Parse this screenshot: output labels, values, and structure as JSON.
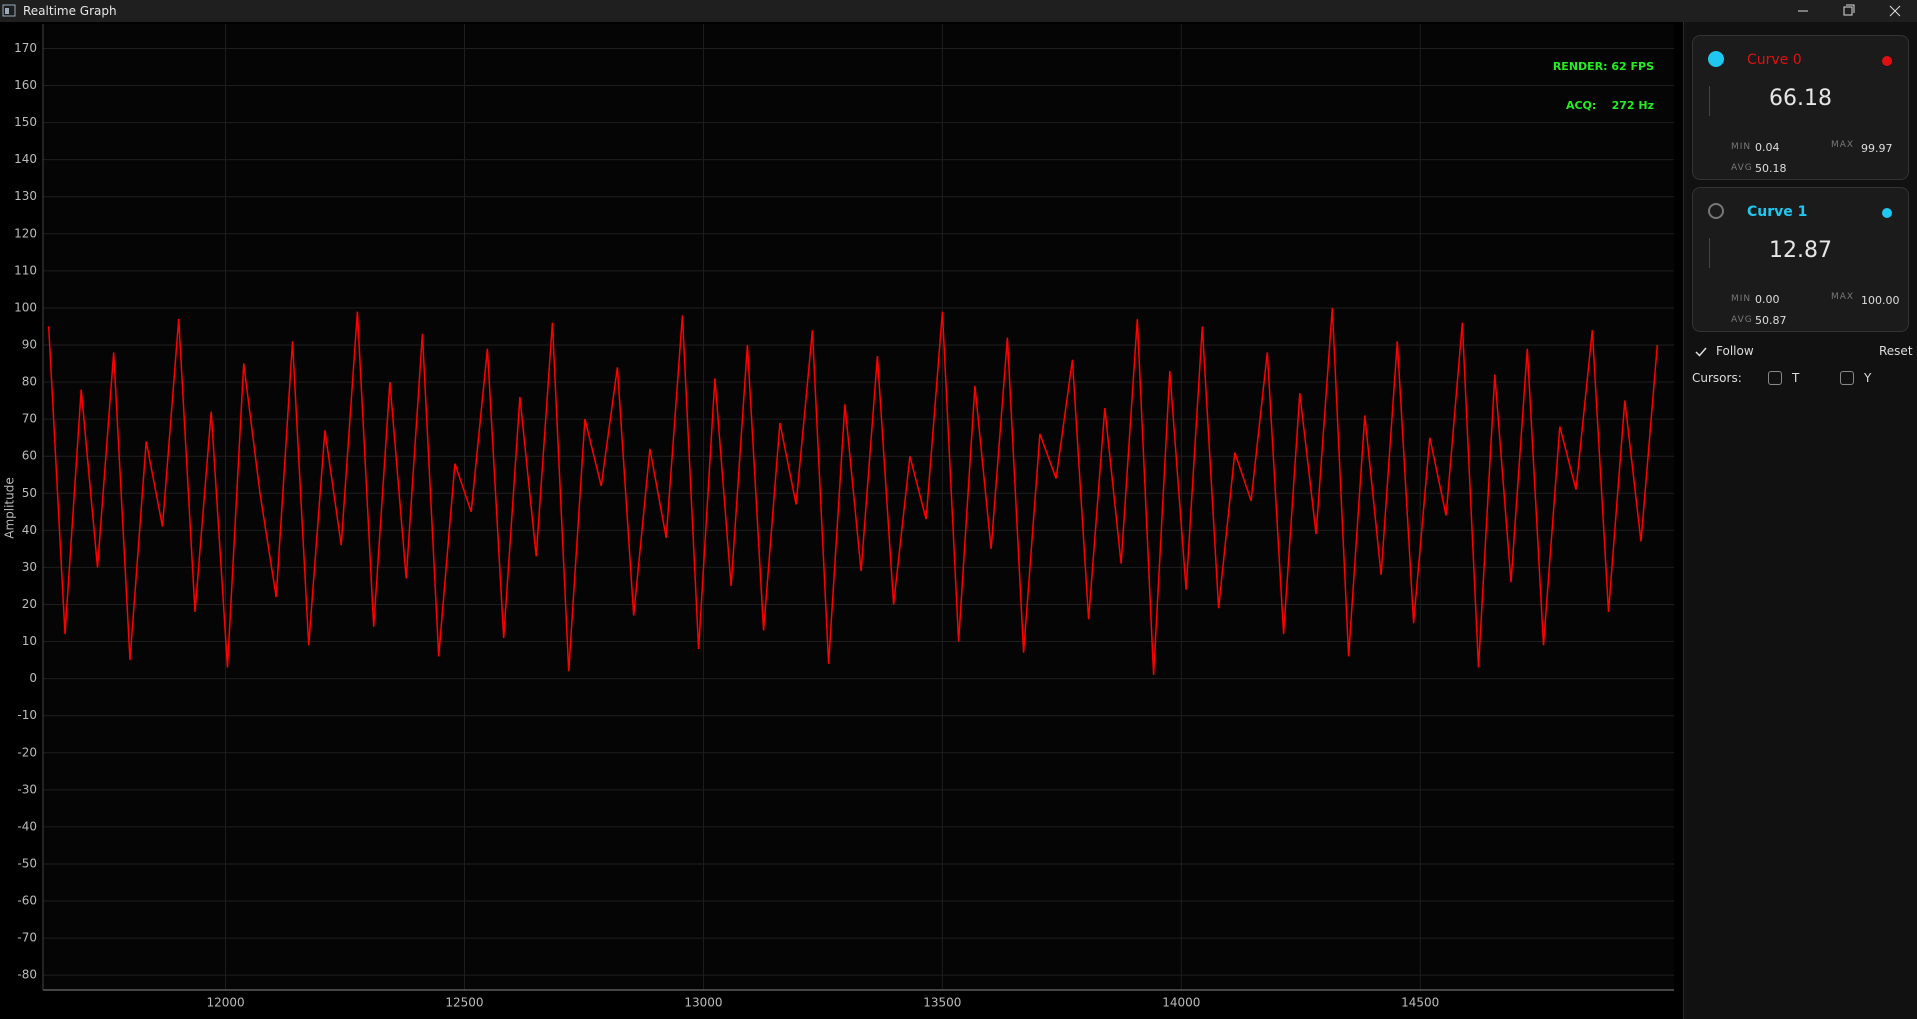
{
  "window": {
    "title": "Realtime Graph"
  },
  "overlay": {
    "render": "RENDER: 62 FPS",
    "acq": "ACQ:    272 Hz"
  },
  "chart_data": {
    "type": "line",
    "y_label": "Amplitude",
    "color": "#ff0000",
    "grid": true,
    "x": [
      11630,
      11664,
      11698,
      11732,
      11766,
      11800,
      11834,
      11868,
      11902,
      11936,
      11970,
      12004,
      12038,
      12072,
      12106,
      12140,
      12174,
      12208,
      12242,
      12276,
      12310,
      12344,
      12378,
      12412,
      12446,
      12480,
      12514,
      12548,
      12582,
      12616,
      12650,
      12684,
      12718,
      12752,
      12786,
      12820,
      12854,
      12888,
      12922,
      12956,
      12990,
      13024,
      13058,
      13092,
      13126,
      13160,
      13194,
      13228,
      13262,
      13296,
      13330,
      13364,
      13398,
      13432,
      13466,
      13500,
      13534,
      13568,
      13602,
      13636,
      13670,
      13704,
      13738,
      13772,
      13806,
      13840,
      13874,
      13908,
      13942,
      13976,
      14010,
      14044,
      14078,
      14112,
      14146,
      14180,
      14214,
      14248,
      14282,
      14316,
      14350,
      14384,
      14418,
      14452,
      14486,
      14520,
      14554,
      14588,
      14622,
      14656,
      14690,
      14724,
      14758,
      14792,
      14826,
      14860,
      14894,
      14928,
      14962,
      14996
    ],
    "values": [
      95,
      12,
      78,
      30,
      88,
      5,
      64,
      41,
      97,
      18,
      72,
      3,
      85,
      50,
      22,
      91,
      9,
      67,
      36,
      99,
      14,
      80,
      27,
      93,
      6,
      58,
      45,
      89,
      11,
      76,
      33,
      96,
      2,
      70,
      52,
      84,
      17,
      62,
      38,
      98,
      8,
      81,
      25,
      90,
      13,
      69,
      47,
      94,
      4,
      74,
      29,
      87,
      20,
      60,
      43,
      99,
      10,
      79,
      35,
      92,
      7,
      66,
      54,
      86,
      16,
      73,
      31,
      97,
      1,
      83,
      24,
      95,
      19,
      61,
      48,
      88,
      12,
      77,
      39,
      100,
      6,
      71,
      28,
      91,
      15,
      65,
      44,
      96,
      3,
      82,
      26,
      89,
      9,
      68,
      51,
      94,
      18,
      75,
      37,
      90
    ],
    "xlim": [
      11618,
      15031
    ],
    "ylim": [
      -84,
      176.6
    ],
    "xticks": [
      12000,
      12500,
      13000,
      13500,
      14000,
      14500
    ],
    "yticks": [
      -80,
      -70,
      -60,
      -50,
      -40,
      -30,
      -20,
      -10,
      0,
      10,
      20,
      30,
      40,
      50,
      60,
      70,
      80,
      90,
      100,
      110,
      120,
      130,
      140,
      150,
      160,
      170
    ]
  },
  "sidebar": {
    "cards": [
      {
        "name": "Curve 0",
        "color": "#e01010",
        "selected": true,
        "value": "66.18",
        "min_label": "MIN",
        "min": "0.04",
        "max_label": "MAX",
        "max": "99.97",
        "avg_label": "AVG",
        "avg": "50.18"
      },
      {
        "name": "Curve 1",
        "color": "#1ec8f0",
        "selected": false,
        "value": "12.87",
        "min_label": "MIN",
        "min": "0.00",
        "max_label": "MAX",
        "max": "100.00",
        "avg_label": "AVG",
        "avg": "50.87"
      }
    ],
    "follow": "Follow",
    "reset": "Reset",
    "cursors": "Cursors:",
    "cursor_t": "T",
    "cursor_y": "Y"
  }
}
